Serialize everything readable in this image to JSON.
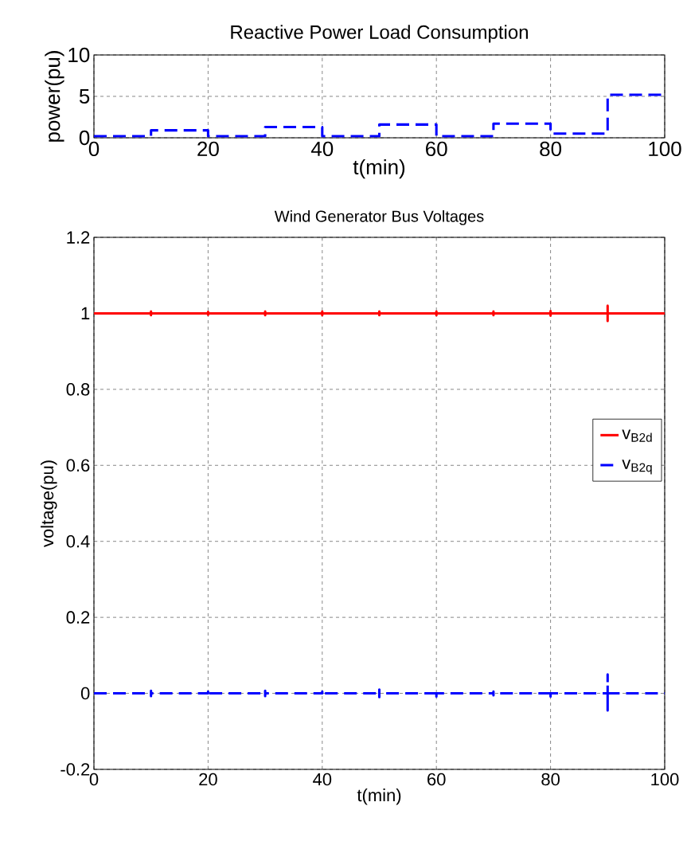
{
  "chart_data": [
    {
      "type": "step",
      "title": "Reactive Power Load Consumption",
      "xlabel": "t(min)",
      "ylabel": "power(pu)",
      "x": [
        0,
        10,
        20,
        30,
        40,
        50,
        60,
        70,
        80,
        90,
        100
      ],
      "series": [
        {
          "color": "#0000ff",
          "line_style": "dashed",
          "values": [
            0.2,
            0.9,
            0.2,
            1.3,
            0.2,
            1.6,
            0.2,
            1.7,
            0.5,
            5.2,
            5.2
          ]
        }
      ],
      "xlim": [
        0,
        100
      ],
      "ylim": [
        0,
        10
      ],
      "xticks": [
        0,
        20,
        40,
        60,
        80,
        100
      ],
      "yticks": [
        0,
        5,
        10
      ],
      "grid": true
    },
    {
      "type": "line",
      "title": "Wind Generator Bus Voltages",
      "xlabel": "t(min)",
      "ylabel": "voltage(pu)",
      "x": [
        0,
        10,
        10,
        10,
        10,
        20,
        20,
        20,
        20,
        30,
        30,
        30,
        30,
        40,
        40,
        40,
        40,
        50,
        50,
        50,
        50,
        60,
        60,
        60,
        60,
        70,
        70,
        70,
        70,
        80,
        80,
        80,
        80,
        90,
        90,
        90,
        90,
        100
      ],
      "series": [
        {
          "name": "v$_{B2d}$",
          "color": "#ff0000",
          "line_style": "solid",
          "values": [
            1,
            1,
            1.005,
            0.995,
            1,
            1,
            1.004,
            0.996,
            1,
            1,
            1.005,
            0.995,
            1,
            1,
            1.005,
            0.995,
            1,
            1,
            1.005,
            0.995,
            1,
            1,
            1.005,
            0.995,
            1,
            1,
            1.005,
            0.995,
            1,
            1,
            1.006,
            0.994,
            1,
            1,
            1.02,
            0.98,
            1,
            1
          ]
        },
        {
          "name": "v$_{B2q}$",
          "color": "#0000ff",
          "line_style": "dashed",
          "values": [
            0,
            0,
            0.007,
            -0.007,
            0,
            0,
            0.005,
            -0.005,
            0,
            0,
            0.007,
            -0.007,
            0,
            0,
            0.005,
            -0.005,
            0,
            0,
            0.01,
            -0.01,
            0,
            0,
            0.008,
            -0.008,
            0,
            0,
            0.005,
            -0.005,
            0,
            0,
            0.008,
            -0.008,
            0,
            0,
            0.05,
            -0.045,
            0,
            0
          ]
        }
      ],
      "xlim": [
        0,
        100
      ],
      "ylim": [
        -0.2,
        1.2
      ],
      "xticks": [
        0,
        20,
        40,
        60,
        80,
        100
      ],
      "yticks": [
        -0.2,
        0,
        0.2,
        0.4,
        0.6,
        0.8,
        1,
        1.2
      ],
      "grid": true,
      "legend": "right"
    }
  ]
}
